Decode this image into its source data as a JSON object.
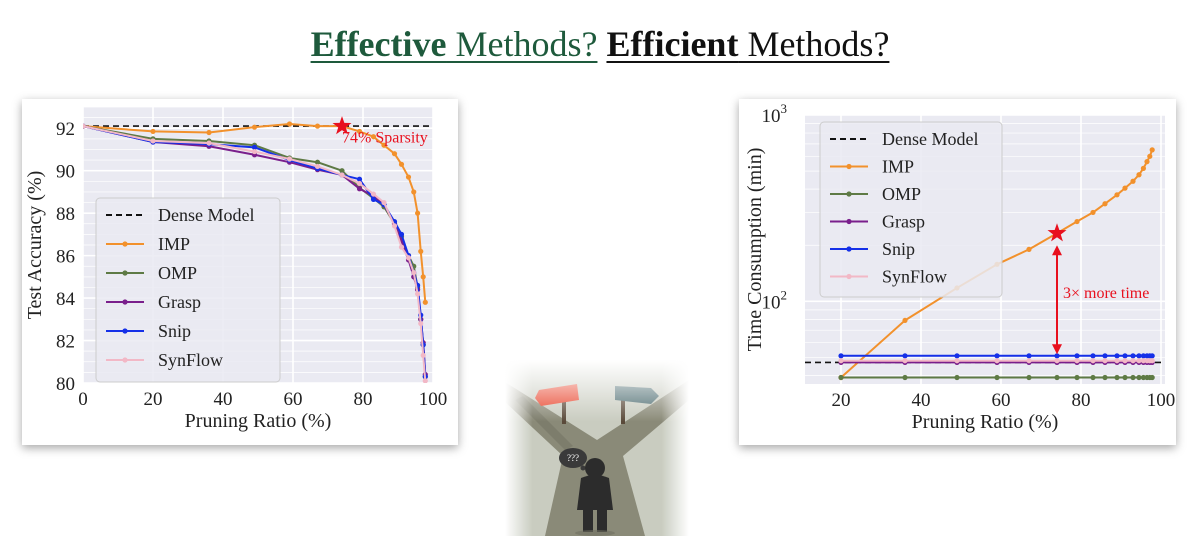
{
  "headline": {
    "part1_bold": "Effective",
    "part1_rest": " Methods?",
    "part2_bold": "Efficient",
    "part2_rest": " Methods?",
    "colors": {
      "part1": "#1e5a3c",
      "part2": "#111111"
    }
  },
  "chart_data": [
    {
      "type": "line",
      "xlabel": "Pruning Ratio (%)",
      "ylabel": "Test Accuracy (%)",
      "xlim": [
        0,
        100
      ],
      "ylim": [
        80,
        93
      ],
      "xticks": [
        0,
        20,
        40,
        60,
        80,
        100
      ],
      "yticks": [
        80,
        82,
        84,
        86,
        88,
        90,
        92
      ],
      "grid": true,
      "legend_position": "center-left",
      "series": [
        {
          "name": "Dense Model",
          "style": "dashed",
          "color": "#111111",
          "x": [
            0,
            100
          ],
          "y": [
            92.1,
            92.1
          ]
        },
        {
          "name": "IMP",
          "color": "#f2912c",
          "x": [
            0,
            20,
            36,
            49,
            59,
            67,
            74,
            79,
            83,
            86,
            89,
            91,
            93,
            94.5,
            95.6,
            96.5,
            97.2,
            97.8
          ],
          "y": [
            92.1,
            91.85,
            91.8,
            92.05,
            92.2,
            92.1,
            92.1,
            91.85,
            91.6,
            91.2,
            90.8,
            90.3,
            89.7,
            89.0,
            88.0,
            86.2,
            85.0,
            83.8
          ]
        },
        {
          "name": "OMP",
          "color": "#5e7a45",
          "x": [
            0,
            20,
            36,
            49,
            59,
            67,
            74,
            79,
            83,
            86,
            89,
            91,
            93,
            94.5,
            95.6,
            96.5,
            97.2,
            97.8
          ],
          "y": [
            92.1,
            91.5,
            91.4,
            91.2,
            90.6,
            90.4,
            90.0,
            89.2,
            88.7,
            88.3,
            87.5,
            86.9,
            86.0,
            85.5,
            84.5,
            83.0,
            81.8,
            80.3
          ]
        },
        {
          "name": "Grasp",
          "color": "#7a1f8c",
          "x": [
            0,
            20,
            36,
            49,
            59,
            67,
            74,
            79,
            83,
            86,
            89,
            91,
            93,
            94.5,
            95.6,
            96.5,
            97.2,
            97.8
          ],
          "y": [
            92.1,
            91.35,
            91.15,
            90.75,
            90.4,
            90.05,
            89.8,
            89.15,
            88.8,
            88.4,
            87.5,
            86.7,
            85.8,
            85.0,
            84.4,
            83.0,
            81.9,
            80.4
          ]
        },
        {
          "name": "Snip",
          "color": "#1530e8",
          "x": [
            0,
            20,
            36,
            49,
            59,
            67,
            74,
            79,
            83,
            86,
            89,
            91,
            93,
            94.5,
            95.6,
            96.5,
            97.2,
            97.8
          ],
          "y": [
            92.1,
            91.35,
            91.25,
            91.1,
            90.5,
            90.1,
            89.8,
            89.6,
            88.65,
            88.4,
            87.6,
            87.0,
            86.0,
            85.2,
            84.6,
            83.2,
            81.8,
            80.3
          ]
        },
        {
          "name": "SynFlow",
          "color": "#f2b8c6",
          "x": [
            0,
            20,
            36,
            49,
            59,
            67,
            74,
            79,
            83,
            86,
            89,
            91,
            93,
            94.5,
            95.6,
            96.5,
            97.2,
            97.8
          ],
          "y": [
            92.1,
            91.4,
            91.3,
            90.9,
            90.55,
            90.2,
            89.8,
            89.4,
            88.9,
            88.5,
            87.4,
            86.4,
            85.9,
            85.2,
            84.2,
            82.8,
            81.3,
            80.1
          ]
        }
      ],
      "annotations": [
        {
          "type": "star",
          "x": 74,
          "y": 92.1,
          "color": "#e8101e"
        },
        {
          "type": "text",
          "text": "74% Sparsity",
          "x": 74,
          "y": 91.6,
          "color": "#e8101e"
        }
      ]
    },
    {
      "type": "line",
      "xlabel": "Pruning Ratio (%)",
      "ylabel": "Time Consumption (min)",
      "xscale": "linear",
      "yscale": "log",
      "xlim": [
        11,
        101
      ],
      "ylim": [
        36,
        1000
      ],
      "xticks": [
        20,
        40,
        60,
        80,
        100
      ],
      "yticks": [
        {
          "value": 100,
          "base": "10",
          "exp": "2"
        },
        {
          "value": 1000,
          "base": "10",
          "exp": "3"
        }
      ],
      "grid": true,
      "legend_position": "upper-left",
      "series": [
        {
          "name": "Dense Model",
          "style": "dashed",
          "color": "#111111",
          "x": [
            11,
            101
          ],
          "y": [
            47,
            47
          ]
        },
        {
          "name": "IMP",
          "color": "#f2912c",
          "x": [
            20,
            36,
            49,
            59,
            67,
            74,
            79,
            83,
            86,
            89,
            91,
            93,
            94.5,
            95.6,
            96.5,
            97.2,
            97.8
          ],
          "y": [
            39,
            79,
            118,
            158,
            190,
            232,
            268,
            300,
            334,
            373,
            405,
            441,
            478,
            517,
            562,
            600,
            650
          ]
        },
        {
          "name": "OMP",
          "color": "#5e7a45",
          "x": [
            20,
            36,
            49,
            59,
            67,
            74,
            79,
            83,
            86,
            89,
            91,
            93,
            94.5,
            95.6,
            96.5,
            97.2,
            97.8
          ],
          "y": [
            39,
            39,
            39,
            39,
            39,
            39,
            39,
            39,
            39,
            39,
            39,
            39,
            39,
            39,
            39,
            39,
            39
          ]
        },
        {
          "name": "Grasp",
          "color": "#7a1f8c",
          "x": [
            20,
            36,
            49,
            59,
            67,
            74,
            79,
            83,
            86,
            89,
            91,
            93,
            94.5,
            95.6,
            96.5,
            97.2,
            97.8
          ],
          "y": [
            47,
            47,
            47,
            47,
            47,
            47,
            47,
            47,
            47,
            47,
            47,
            47,
            47,
            47,
            47,
            47,
            47
          ]
        },
        {
          "name": "Snip",
          "color": "#1530e8",
          "x": [
            20,
            36,
            49,
            59,
            67,
            74,
            79,
            83,
            86,
            89,
            91,
            93,
            94.5,
            95.6,
            96.5,
            97.2,
            97.8
          ],
          "y": [
            51,
            51,
            51,
            51,
            51,
            51,
            51,
            51,
            51,
            51,
            51,
            51,
            51,
            51,
            51,
            51,
            51
          ]
        },
        {
          "name": "SynFlow",
          "color": "#f2b8c6",
          "x": [
            20,
            36,
            49,
            59,
            67,
            74,
            79,
            83,
            86,
            89,
            91,
            93,
            94.5,
            95.6,
            96.5,
            97.2,
            97.8
          ],
          "y": [
            48,
            48,
            48,
            48,
            48,
            48,
            48,
            48,
            48,
            48,
            48,
            48,
            48,
            48,
            48,
            48,
            48
          ]
        }
      ],
      "annotations": [
        {
          "type": "star",
          "x": 74,
          "y": 232,
          "color": "#e8101e"
        },
        {
          "type": "double-arrow",
          "x": 74,
          "y_from": 52,
          "y_to": 200,
          "color": "#e8101e"
        },
        {
          "type": "text",
          "text": "3× more time",
          "x": 75.5,
          "y": 112,
          "color": "#e8101e"
        }
      ]
    }
  ],
  "illustration": {
    "icons": [
      "crossroads-icon",
      "signpost-left-icon",
      "signpost-right-icon",
      "thinking-person-icon"
    ],
    "thought_bubble": "???",
    "colors": {
      "road": "#8a8a78",
      "grass": "#c9ccc0",
      "sign_left": "#e8442c",
      "sign_right": "#4a6a6e",
      "person": "#2c2c2c"
    }
  }
}
